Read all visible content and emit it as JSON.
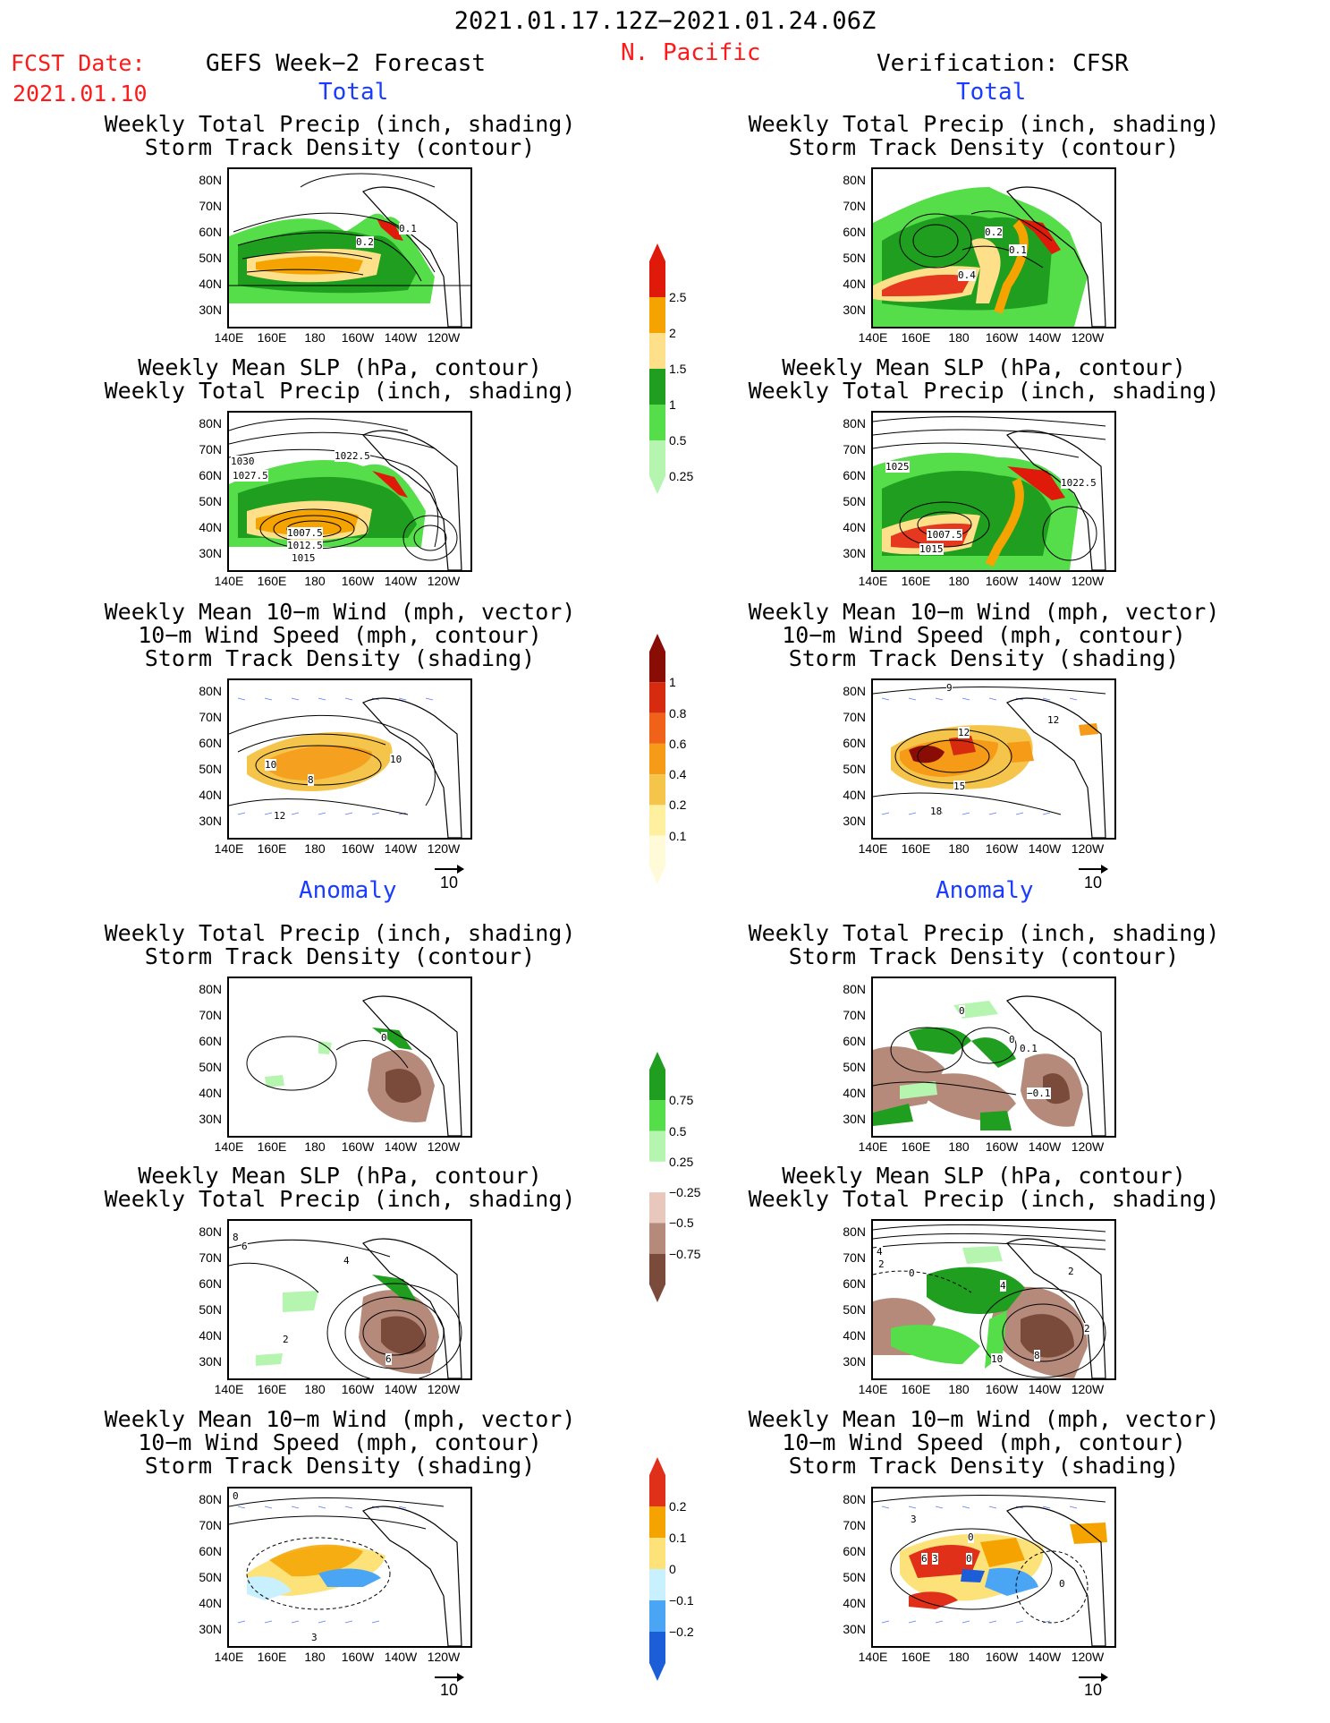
{
  "header": {
    "period": "2021.01.17.12Z−2021.01.24.06Z",
    "region": "N. Pacific",
    "fcst_label": "FCST Date:",
    "fcst_date": "2021.01.10",
    "left_title": "GEFS Week−2 Forecast",
    "right_title": "Verification: CFSR",
    "total_label": "Total",
    "anomaly_label": "Anomaly"
  },
  "panel_titles": {
    "precip_track": "Weekly Total Precip (inch, shading)\nStorm Track Density (contour)",
    "slp_precip": "Weekly Mean SLP (hPa, contour)\nWeekly Total Precip (inch, shading)",
    "wind_track": "Weekly Mean 10−m Wind (mph, vector)\n10−m Wind Speed (mph, contour)\nStorm Track Density (shading)"
  },
  "axes": {
    "lat_ticks": [
      "80N",
      "70N",
      "60N",
      "50N",
      "40N",
      "30N"
    ],
    "lon_ticks": [
      "140E",
      "160E",
      "180",
      "160W",
      "140W",
      "120W"
    ]
  },
  "vector_ref": "10",
  "colorbars": {
    "precip_total": {
      "labels": [
        "2.5",
        "2",
        "1.5",
        "1",
        "0.5",
        "0.25"
      ],
      "colors": [
        "#e01a0a",
        "#f5a300",
        "#ffe08a",
        "#1f9e1f",
        "#55dd4a",
        "#b5f5b0"
      ]
    },
    "track_total": {
      "labels": [
        "1",
        "0.8",
        "0.6",
        "0.4",
        "0.2",
        "0.1"
      ],
      "colors": [
        "#8a0d05",
        "#d72b10",
        "#f0621a",
        "#f59b17",
        "#f5c44a",
        "#fff0a0",
        "#fffbd8"
      ]
    },
    "precip_anom": {
      "labels": [
        "0.75",
        "0.5",
        "0.25",
        "−0.25",
        "−0.5",
        "−0.75"
      ],
      "colors": [
        "#1f9e1f",
        "#55dd4a",
        "#b5f5b0",
        "#ffffff",
        "#e8c8bd",
        "#b58a7a",
        "#7a4a3a"
      ]
    },
    "track_anom": {
      "labels": [
        "0.2",
        "0.1",
        "0",
        "−0.1",
        "−0.2"
      ],
      "colors": [
        "#e0301a",
        "#f5a300",
        "#fde27a",
        "#c8f0ff",
        "#4aa6f5",
        "#1c5ed8"
      ]
    }
  },
  "contour_labels": {
    "left_precip_total": [
      "0.1",
      "0.2"
    ],
    "right_precip_total": [
      "0.2",
      "0.1",
      "0.4"
    ],
    "left_slp_total": [
      "1030",
      "1027.5",
      "1022.5",
      "1007.5",
      "1012.5",
      "1015"
    ],
    "right_slp_total": [
      "1025",
      "1022.5",
      "1007.5",
      "1015"
    ],
    "left_wind_total": [
      "10",
      "8",
      "10",
      "12"
    ],
    "right_wind_total": [
      "9",
      "12",
      "12",
      "15",
      "18"
    ],
    "left_precip_anom": [
      "0"
    ],
    "right_precip_anom": [
      "0",
      "0",
      "0.1",
      "−0.1"
    ],
    "left_slp_anom": [
      "8",
      "6",
      "4",
      "2",
      "6"
    ],
    "right_slp_anom": [
      "4",
      "2",
      "0",
      "2",
      "4",
      "2",
      "10",
      "8"
    ],
    "left_wind_anom": [
      "0",
      "3"
    ],
    "right_wind_anom": [
      "3",
      "0",
      "6",
      "3",
      "0",
      "0"
    ]
  }
}
